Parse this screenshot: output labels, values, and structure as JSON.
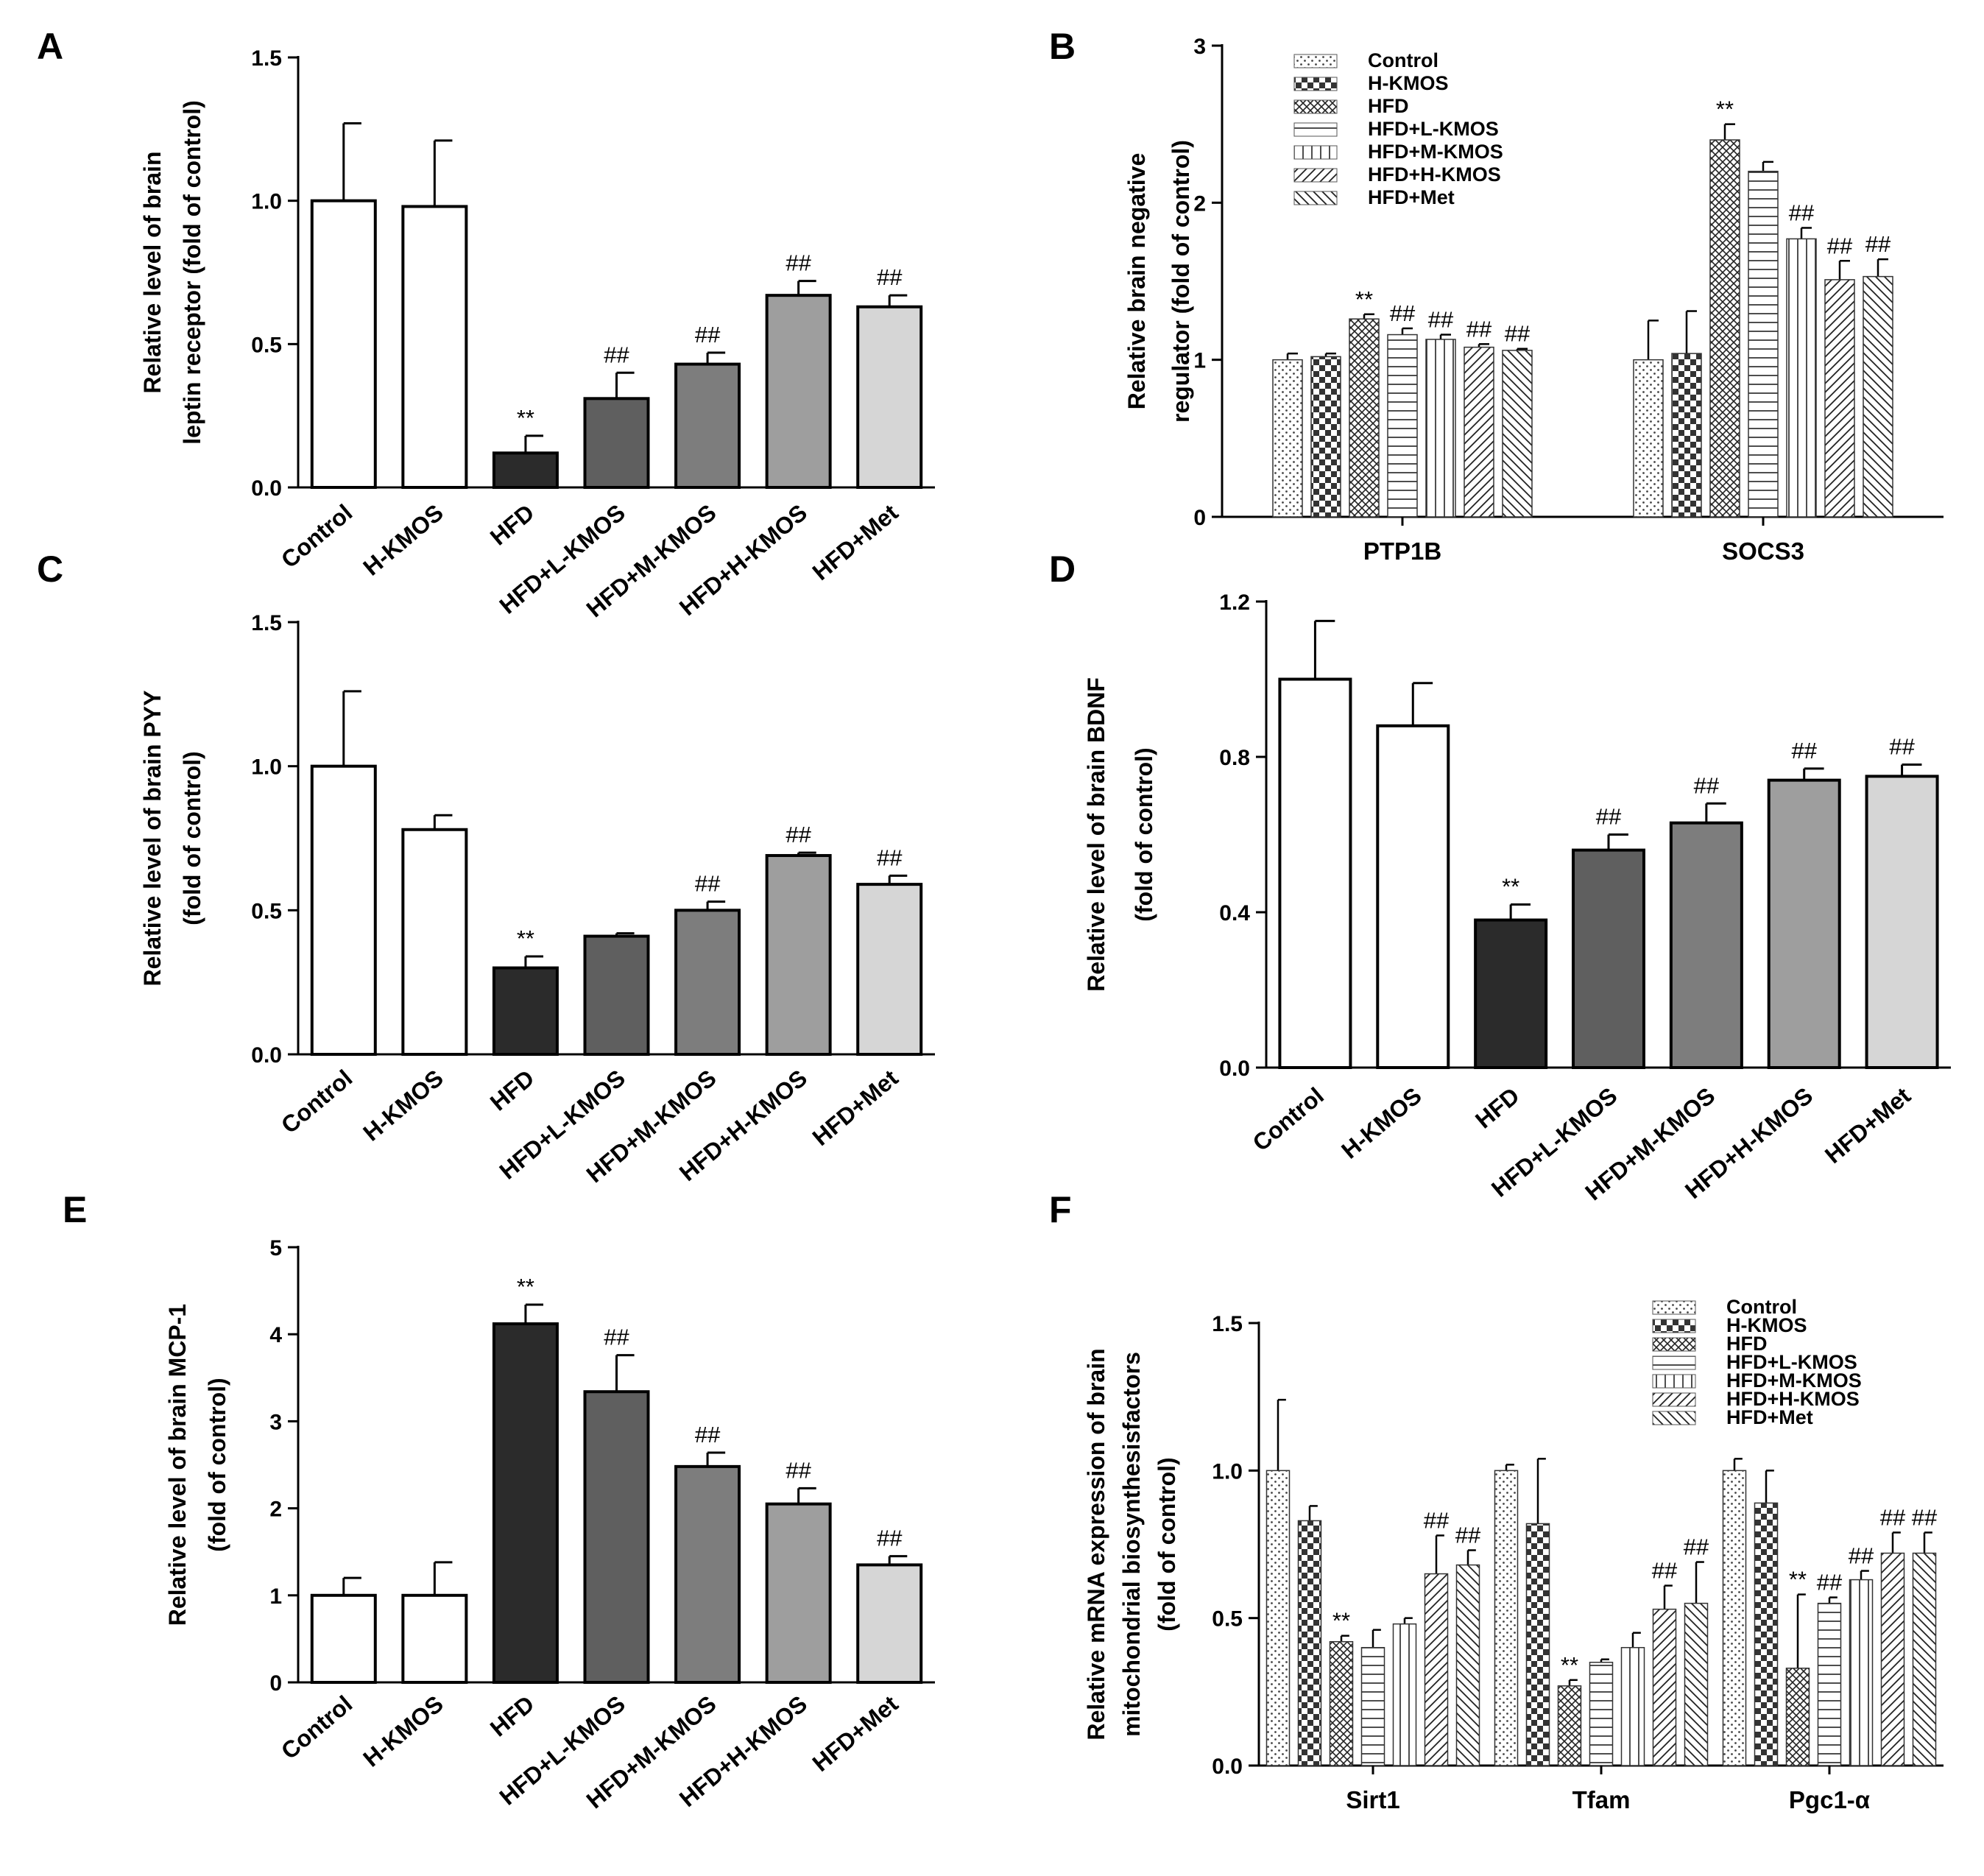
{
  "figure": {
    "colors": {
      "white": "#ffffff",
      "black": "#2b2b2b",
      "dark": "#5f5f5f",
      "mid": "#7d7d7d",
      "light": "#9e9e9e",
      "lighter": "#d6d6d6",
      "axis": "#000000"
    }
  },
  "chart_data": [
    {
      "panel": "A",
      "type": "bar",
      "title": "",
      "ylabel": [
        "Relative level of brain",
        "leptin receptor (fold of control)"
      ],
      "xlabel": "",
      "ylim": [
        0,
        1.5
      ],
      "yticks": [
        "0.0",
        "0.5",
        "1.0",
        "1.5"
      ],
      "categories": [
        "Control",
        "H-KMOS",
        "HFD",
        "HFD+L-KMOS",
        "HFD+M-KMOS",
        "HFD+H-KMOS",
        "HFD+Met"
      ],
      "values": [
        1.0,
        0.98,
        0.12,
        0.31,
        0.43,
        0.67,
        0.63
      ],
      "errors": [
        0.27,
        0.23,
        0.06,
        0.09,
        0.04,
        0.05,
        0.04
      ],
      "fill_colors": [
        "white",
        "white",
        "black",
        "dark",
        "mid",
        "light",
        "lighter"
      ],
      "annotations": [
        "",
        "",
        "**",
        "##",
        "##",
        "##",
        "##"
      ]
    },
    {
      "panel": "B",
      "type": "bar",
      "title": "",
      "ylabel": [
        "Relative brain negative",
        "regulator (fold of control)"
      ],
      "xlabel": "",
      "ylim": [
        0,
        3
      ],
      "yticks": [
        "0",
        "1",
        "2",
        "3"
      ],
      "groups": [
        "PTP1B",
        "SOCS3"
      ],
      "series": [
        {
          "name": "Control",
          "pattern": "dots",
          "values": [
            1.0,
            1.0
          ],
          "errors": [
            0.04,
            0.25
          ],
          "annotations": [
            "",
            ""
          ]
        },
        {
          "name": "H-KMOS",
          "pattern": "checker",
          "values": [
            1.02,
            1.04
          ],
          "errors": [
            0.02,
            0.27
          ],
          "annotations": [
            "",
            ""
          ]
        },
        {
          "name": "HFD",
          "pattern": "cross",
          "values": [
            1.26,
            2.4
          ],
          "errors": [
            0.03,
            0.1
          ],
          "annotations": [
            "**",
            "**"
          ]
        },
        {
          "name": "HFD+L-KMOS",
          "pattern": "hlines",
          "values": [
            1.16,
            2.2
          ],
          "errors": [
            0.04,
            0.06
          ],
          "annotations": [
            "##",
            ""
          ]
        },
        {
          "name": "HFD+M-KMOS",
          "pattern": "vlines",
          "values": [
            1.13,
            1.77
          ],
          "errors": [
            0.03,
            0.07
          ],
          "annotations": [
            "##",
            "##"
          ]
        },
        {
          "name": "HFD+H-KMOS",
          "pattern": "diag",
          "values": [
            1.08,
            1.51
          ],
          "errors": [
            0.02,
            0.12
          ],
          "annotations": [
            "##",
            "##"
          ]
        },
        {
          "name": "HFD+Met",
          "pattern": "backdiag",
          "values": [
            1.06,
            1.53
          ],
          "errors": [
            0.01,
            0.11
          ],
          "annotations": [
            "##",
            "##"
          ]
        }
      ]
    },
    {
      "panel": "C",
      "type": "bar",
      "title": "",
      "ylabel": [
        "Relative level of brain PYY",
        "(fold of control)"
      ],
      "xlabel": "",
      "ylim": [
        0,
        1.5
      ],
      "yticks": [
        "0.0",
        "0.5",
        "1.0",
        "1.5"
      ],
      "categories": [
        "Control",
        "H-KMOS",
        "HFD",
        "HFD+L-KMOS",
        "HFD+M-KMOS",
        "HFD+H-KMOS",
        "HFD+Met"
      ],
      "values": [
        1.0,
        0.78,
        0.3,
        0.41,
        0.5,
        0.69,
        0.59
      ],
      "errors": [
        0.26,
        0.05,
        0.04,
        0.01,
        0.03,
        0.01,
        0.03
      ],
      "fill_colors": [
        "white",
        "white",
        "black",
        "dark",
        "mid",
        "light",
        "lighter"
      ],
      "annotations": [
        "",
        "",
        "**",
        "",
        "##",
        "##",
        "##"
      ]
    },
    {
      "panel": "D",
      "type": "bar",
      "title": "",
      "ylabel": [
        "Relative level of brain BDNF",
        "(fold of control)"
      ],
      "xlabel": "",
      "ylim": [
        0,
        1.2
      ],
      "yticks": [
        "0.0",
        "0.4",
        "0.8",
        "1.2"
      ],
      "categories": [
        "Control",
        "H-KMOS",
        "HFD",
        "HFD+L-KMOS",
        "HFD+M-KMOS",
        "HFD+H-KMOS",
        "HFD+Met"
      ],
      "values": [
        1.0,
        0.88,
        0.38,
        0.56,
        0.63,
        0.74,
        0.75
      ],
      "errors": [
        0.15,
        0.11,
        0.04,
        0.04,
        0.05,
        0.03,
        0.03
      ],
      "fill_colors": [
        "white",
        "white",
        "black",
        "dark",
        "mid",
        "light",
        "lighter"
      ],
      "annotations": [
        "",
        "",
        "**",
        "##",
        "##",
        "##",
        "##"
      ]
    },
    {
      "panel": "E",
      "type": "bar",
      "title": "",
      "ylabel": [
        "Relative level of brain MCP-1",
        "(fold of control)"
      ],
      "xlabel": "",
      "ylim": [
        0,
        5
      ],
      "yticks": [
        "0",
        "1",
        "2",
        "3",
        "4",
        "5"
      ],
      "categories": [
        "Control",
        "H-KMOS",
        "HFD",
        "HFD+L-KMOS",
        "HFD+M-KMOS",
        "HFD+H-KMOS",
        "HFD+Met"
      ],
      "values": [
        1.0,
        1.0,
        4.12,
        3.34,
        2.48,
        2.05,
        1.35
      ],
      "errors": [
        0.2,
        0.38,
        0.22,
        0.42,
        0.16,
        0.18,
        0.1
      ],
      "fill_colors": [
        "white",
        "white",
        "black",
        "dark",
        "mid",
        "light",
        "lighter"
      ],
      "annotations": [
        "",
        "",
        "**",
        "##",
        "##",
        "##",
        "##"
      ]
    },
    {
      "panel": "F",
      "type": "bar",
      "title": "",
      "ylabel": [
        "Relative mRNA expression of brain",
        "mitochondrial biosynthesisfactors",
        "(fold of control)"
      ],
      "xlabel": "",
      "ylim": [
        0,
        1.5
      ],
      "yticks": [
        "0.0",
        "0.5",
        "1.0",
        "1.5"
      ],
      "groups": [
        "Sirt1",
        "Tfam",
        "Pgc1-α"
      ],
      "series": [
        {
          "name": "Control",
          "pattern": "dots",
          "values": [
            1.0,
            1.0,
            1.0
          ],
          "errors": [
            0.24,
            0.02,
            0.04
          ],
          "annotations": [
            "",
            "",
            ""
          ]
        },
        {
          "name": "H-KMOS",
          "pattern": "checker",
          "values": [
            0.83,
            0.82,
            0.89
          ],
          "errors": [
            0.05,
            0.22,
            0.11
          ],
          "annotations": [
            "",
            "",
            ""
          ]
        },
        {
          "name": "HFD",
          "pattern": "cross",
          "values": [
            0.42,
            0.27,
            0.33
          ],
          "errors": [
            0.02,
            0.02,
            0.25
          ],
          "annotations": [
            "**",
            "**",
            "**"
          ]
        },
        {
          "name": "HFD+L-KMOS",
          "pattern": "hlines",
          "values": [
            0.4,
            0.35,
            0.55
          ],
          "errors": [
            0.06,
            0.01,
            0.02
          ],
          "annotations": [
            "",
            "",
            "##"
          ]
        },
        {
          "name": "HFD+M-KMOS",
          "pattern": "vlines",
          "values": [
            0.48,
            0.4,
            0.63
          ],
          "errors": [
            0.02,
            0.05,
            0.03
          ],
          "annotations": [
            "",
            "",
            "##"
          ]
        },
        {
          "name": "HFD+H-KMOS",
          "pattern": "diag",
          "values": [
            0.65,
            0.53,
            0.72
          ],
          "errors": [
            0.13,
            0.08,
            0.07
          ],
          "annotations": [
            "##",
            "##",
            "##"
          ]
        },
        {
          "name": "HFD+Met",
          "pattern": "backdiag",
          "values": [
            0.68,
            0.55,
            0.72
          ],
          "errors": [
            0.05,
            0.14,
            0.07
          ],
          "annotations": [
            "##",
            "##",
            "##"
          ]
        }
      ]
    }
  ]
}
